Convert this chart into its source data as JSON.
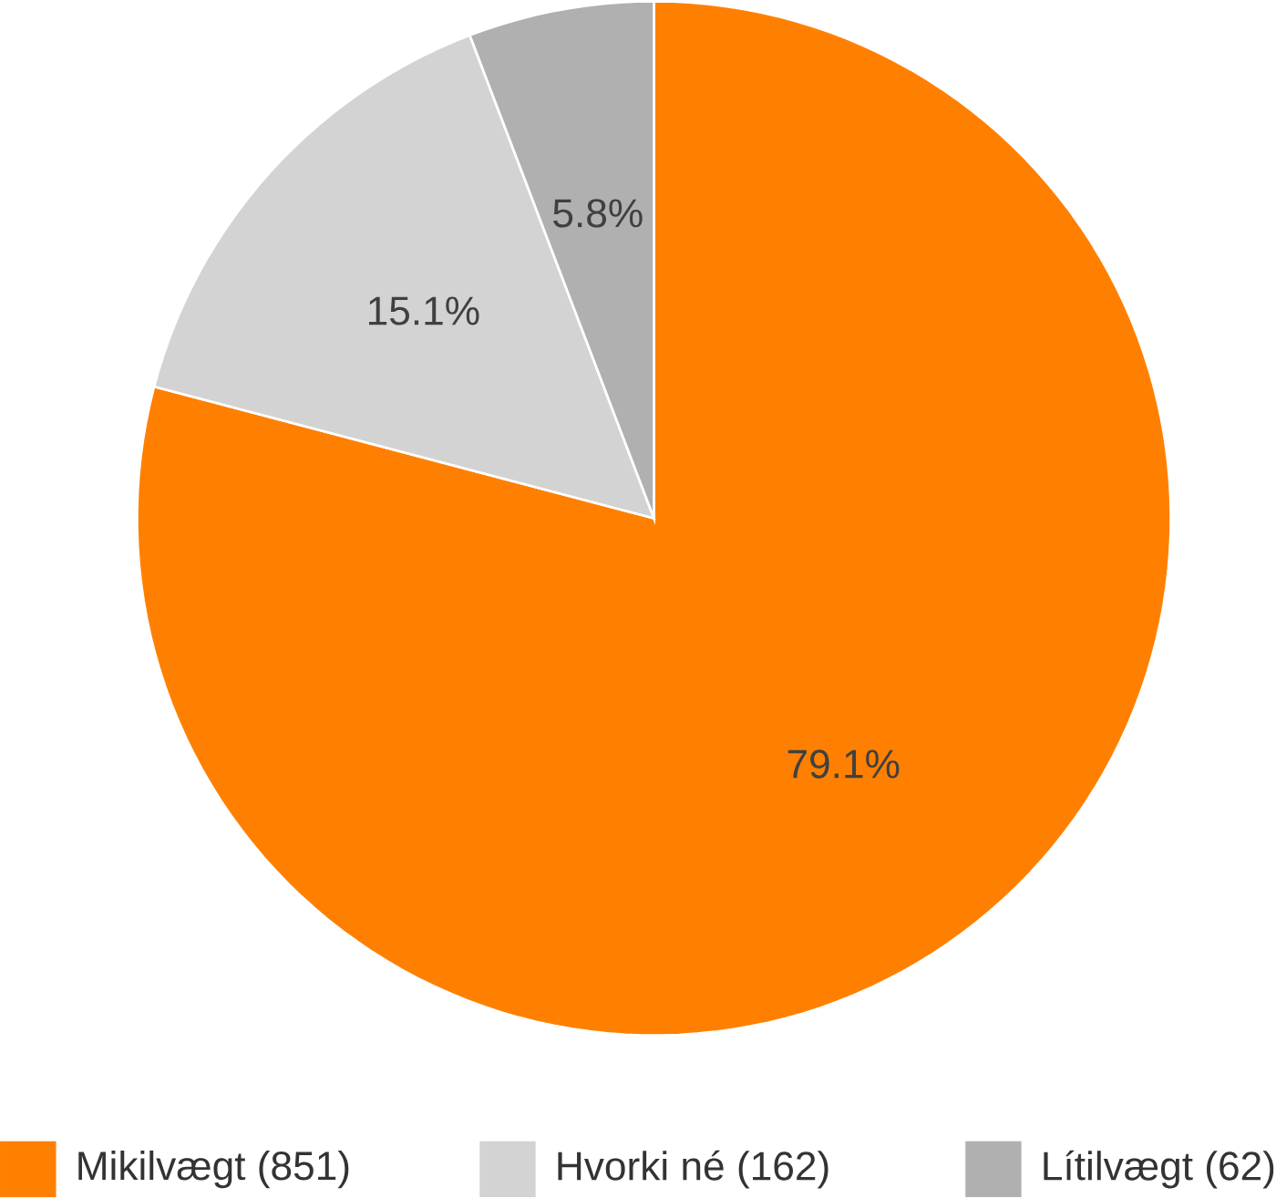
{
  "chart_data": {
    "type": "pie",
    "categories": [
      "Mikilvægt (851)",
      "Hvorki né (162)",
      "Lítilvægt (62)"
    ],
    "values": [
      79.1,
      15.1,
      5.8
    ],
    "value_labels": [
      "79.1%",
      "15.1%",
      "5.8%"
    ],
    "colors": [
      "#ff8000",
      "#d3d3d3",
      "#b0b0b0"
    ],
    "legend": "bottom"
  }
}
